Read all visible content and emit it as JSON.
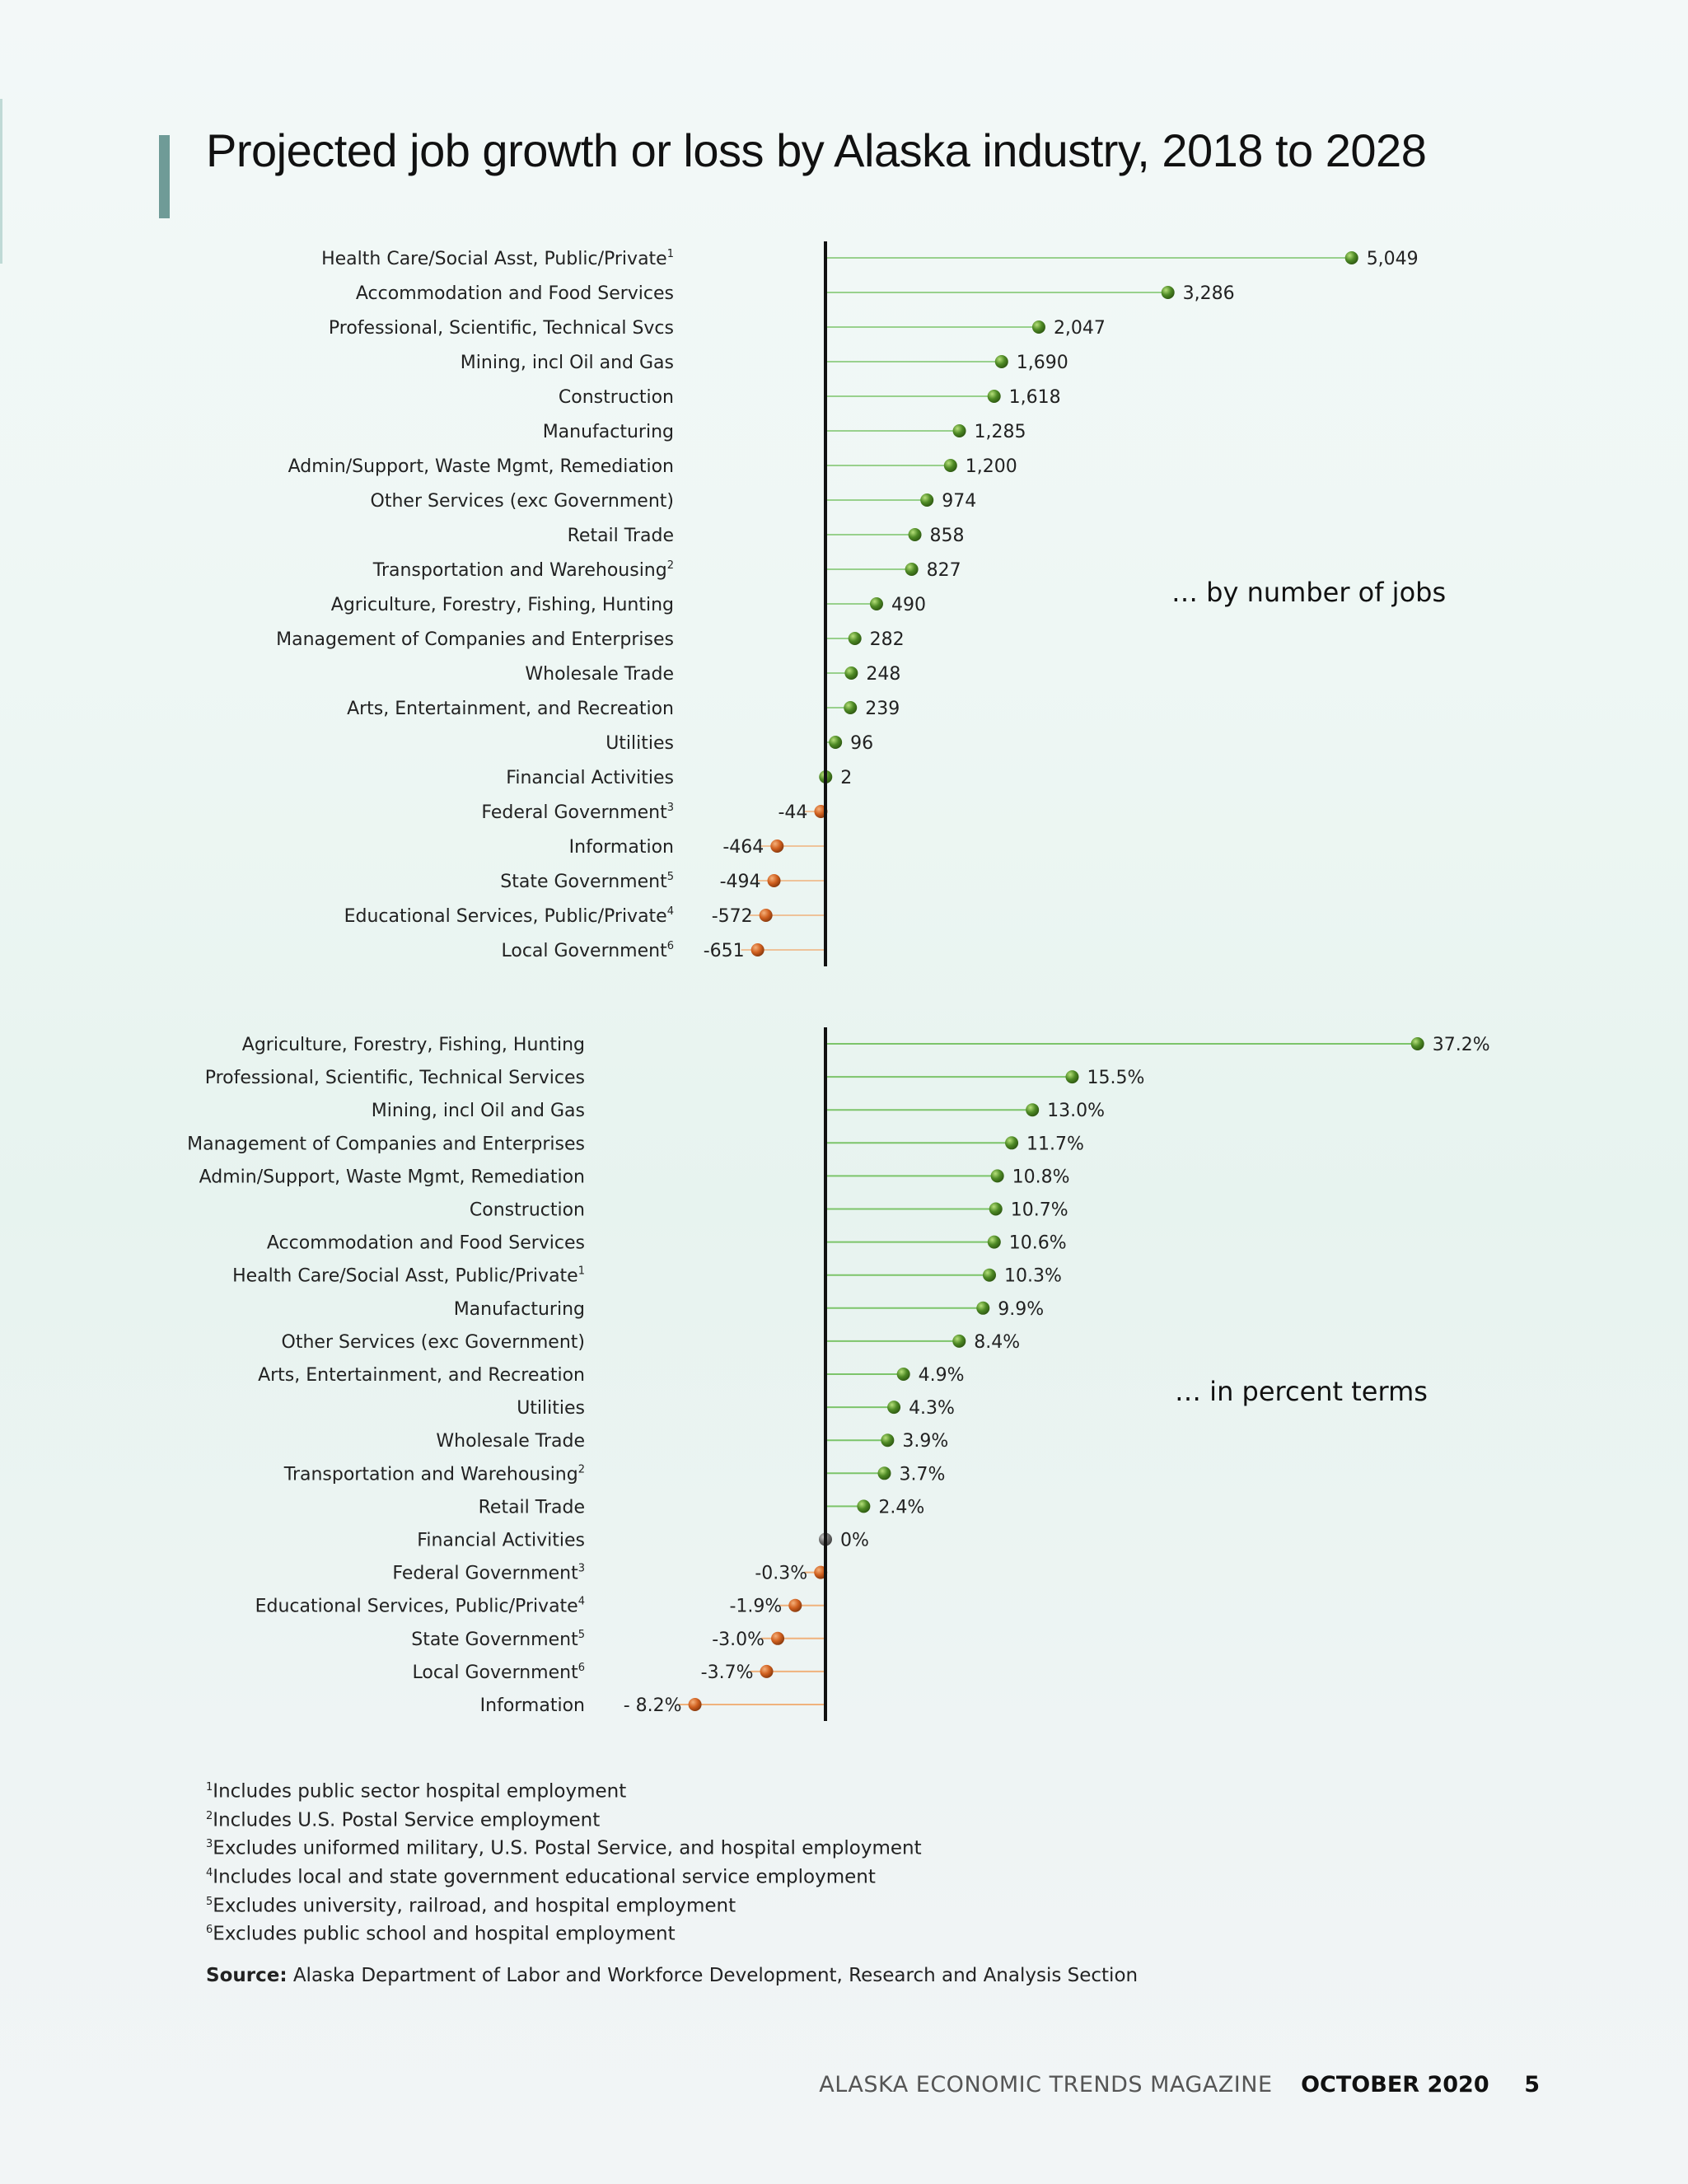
{
  "title": "Projected job growth or loss by Alaska industry, 2018 to 2028",
  "colors": {
    "positive": "#5a9a2e",
    "negative": "#d06a2a",
    "zero": "#6d6d6d",
    "accent": "#6f9b97"
  },
  "chart_data": [
    {
      "type": "bar",
      "annotation": "… by number of jobs",
      "categories": [
        {
          "main": "Health Care/Social Asst, Public/Private",
          "sup": "1"
        },
        {
          "main": "Accommodation and Food Services",
          "sup": ""
        },
        {
          "main": "Professional, Scientific, Technical Svcs",
          "sup": ""
        },
        {
          "main": "Mining, incl Oil and Gas",
          "sup": ""
        },
        {
          "main": "Construction",
          "sup": ""
        },
        {
          "main": "Manufacturing",
          "sup": ""
        },
        {
          "main": "Admin/Support, Waste Mgmt, Remediation",
          "sup": ""
        },
        {
          "main": "Other Services (exc Government)",
          "sup": ""
        },
        {
          "main": "Retail Trade",
          "sup": ""
        },
        {
          "main": "Transportation and Warehousing",
          "sup": "2"
        },
        {
          "main": "Agriculture, Forestry, Fishing, Hunting",
          "sup": ""
        },
        {
          "main": "Management of Companies and Enterprises",
          "sup": ""
        },
        {
          "main": "Wholesale Trade",
          "sup": ""
        },
        {
          "main": "Arts, Entertainment, and Recreation",
          "sup": ""
        },
        {
          "main": "Utilities",
          "sup": ""
        },
        {
          "main": "Financial Activities",
          "sup": ""
        },
        {
          "main": "Federal Government",
          "sup": "3"
        },
        {
          "main": "Information",
          "sup": ""
        },
        {
          "main": "State Government",
          "sup": "5"
        },
        {
          "main": "Educational Services, Public/Private",
          "sup": "4"
        },
        {
          "main": "Local Government",
          "sup": "6"
        }
      ],
      "values": [
        5049,
        3286,
        2047,
        1690,
        1618,
        1285,
        1200,
        974,
        858,
        827,
        490,
        282,
        248,
        239,
        96,
        2,
        -44,
        -464,
        -494,
        -572,
        -651
      ],
      "value_labels": [
        "5,049",
        "3,286",
        "2,047",
        "1,690",
        "1,618",
        "1,285",
        "1,200",
        "974",
        "858",
        "827",
        "490",
        "282",
        "248",
        "239",
        "96",
        "2",
        "-44",
        "-464",
        "-494",
        "-572",
        "-651"
      ]
    },
    {
      "type": "bar",
      "annotation": "… in percent terms",
      "categories": [
        {
          "main": "Agriculture, Forestry, Fishing, Hunting",
          "sup": ""
        },
        {
          "main": "Professional, Scientific, Technical Services",
          "sup": ""
        },
        {
          "main": "Mining, incl Oil and Gas",
          "sup": ""
        },
        {
          "main": "Management of Companies and Enterprises",
          "sup": ""
        },
        {
          "main": "Admin/Support, Waste Mgmt, Remediation",
          "sup": ""
        },
        {
          "main": "Construction",
          "sup": ""
        },
        {
          "main": "Accommodation and Food Services",
          "sup": ""
        },
        {
          "main": "Health Care/Social Asst, Public/Private",
          "sup": "1"
        },
        {
          "main": "Manufacturing",
          "sup": ""
        },
        {
          "main": "Other Services (exc Government)",
          "sup": ""
        },
        {
          "main": "Arts, Entertainment, and Recreation",
          "sup": ""
        },
        {
          "main": "Utilities",
          "sup": ""
        },
        {
          "main": "Wholesale Trade",
          "sup": ""
        },
        {
          "main": "Transportation and Warehousing",
          "sup": "2"
        },
        {
          "main": "Retail Trade",
          "sup": ""
        },
        {
          "main": "Financial Activities",
          "sup": ""
        },
        {
          "main": "Federal Government",
          "sup": "3"
        },
        {
          "main": "Educational Services, Public/Private",
          "sup": "4"
        },
        {
          "main": "State Government",
          "sup": "5"
        },
        {
          "main": "Local Government",
          "sup": "6"
        },
        {
          "main": "Information",
          "sup": ""
        }
      ],
      "values": [
        37.2,
        15.5,
        13.0,
        11.7,
        10.8,
        10.7,
        10.6,
        10.3,
        9.9,
        8.4,
        4.9,
        4.3,
        3.9,
        3.7,
        2.4,
        0,
        -0.3,
        -1.9,
        -3.0,
        -3.7,
        -8.2
      ],
      "value_labels": [
        "37.2%",
        "15.5%",
        "13.0%",
        "11.7%",
        "10.8%",
        "10.7%",
        "10.6%",
        "10.3%",
        "9.9%",
        "8.4%",
        "4.9%",
        "4.3%",
        "3.9%",
        "3.7%",
        "2.4%",
        "0%",
        "-0.3%",
        "-1.9%",
        "-3.0%",
        "-3.7%",
        "- 8.2%"
      ]
    }
  ],
  "footnotes": [
    {
      "sup": "1",
      "text": "Includes public sector hospital employment"
    },
    {
      "sup": "2",
      "text": "Includes U.S. Postal Service employment"
    },
    {
      "sup": "3",
      "text": "Excludes uniformed military, U.S. Postal Service, and hospital employment"
    },
    {
      "sup": "4",
      "text": "Includes local and state government educational service employment"
    },
    {
      "sup": "5",
      "text": "Excludes university, railroad, and hospital employment"
    },
    {
      "sup": "6",
      "text": "Excludes public school and hospital employment"
    }
  ],
  "source": {
    "label": "Source:",
    "text": "Alaska Department of Labor and Workforce Development, Research and Analysis Section"
  },
  "footer": {
    "magazine": "ALASKA ECONOMIC TRENDS MAGAZINE",
    "issue": "OCTOBER 2020",
    "page": "5"
  }
}
